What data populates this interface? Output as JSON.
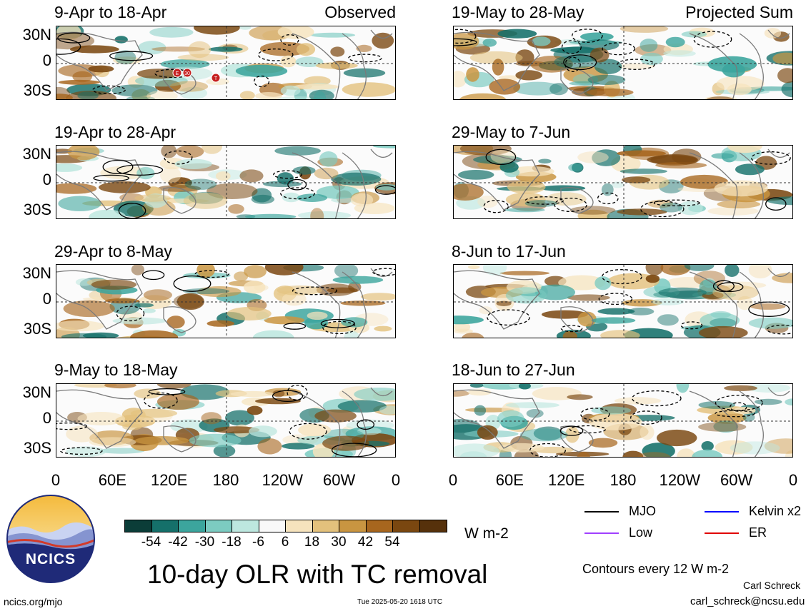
{
  "panels": [
    {
      "title": "9-Apr to 18-Apr",
      "tag": "Observed",
      "seed": 11
    },
    {
      "title": "19-Apr to 28-Apr",
      "tag": "",
      "seed": 23
    },
    {
      "title": "29-Apr to 8-May",
      "tag": "",
      "seed": 37
    },
    {
      "title": "9-May to 18-May",
      "tag": "",
      "seed": 41
    },
    {
      "title": "19-May to 28-May",
      "tag": "Projected Sum",
      "seed": 53
    },
    {
      "title": "29-May to 7-Jun",
      "tag": "",
      "seed": 67
    },
    {
      "title": "8-Jun to 17-Jun",
      "tag": "",
      "seed": 71
    },
    {
      "title": "18-Jun to 27-Jun",
      "tag": "",
      "seed": 89
    }
  ],
  "y_labels": [
    "30N",
    "0",
    "30S"
  ],
  "x_labels": [
    "0",
    "60E",
    "120E",
    "180",
    "120W",
    "60W",
    "0"
  ],
  "tc_markers": [
    "E",
    "30",
    "T"
  ],
  "colorbar": {
    "colors": [
      "#0b3d38",
      "#15706a",
      "#3ca59d",
      "#7ccbc1",
      "#bde7df",
      "#f9f9f9",
      "#f6e3bd",
      "#e3c17c",
      "#c99541",
      "#a7661e",
      "#7a4710",
      "#56310b"
    ],
    "labels": [
      "-54",
      "-42",
      "-30",
      "-18",
      "-6",
      "6",
      "18",
      "30",
      "42",
      "54"
    ],
    "units": "W m-2"
  },
  "legend": [
    {
      "label": "MJO",
      "color": "#000000"
    },
    {
      "label": "Kelvin x2",
      "color": "#0000ff"
    },
    {
      "label": "Low",
      "color": "#a040ff"
    },
    {
      "label": "ER",
      "color": "#e00000"
    }
  ],
  "main_title": "10-day OLR with TC removal",
  "contour_note": "Contours every 12 W m-2",
  "logo_text": "NCICS",
  "url": "ncics.org/mjo",
  "timestamp": "Tue 2025-05-20 1618 UTC",
  "author": "Carl Schreck",
  "email": "carl_schreck@ncsu.edu"
}
